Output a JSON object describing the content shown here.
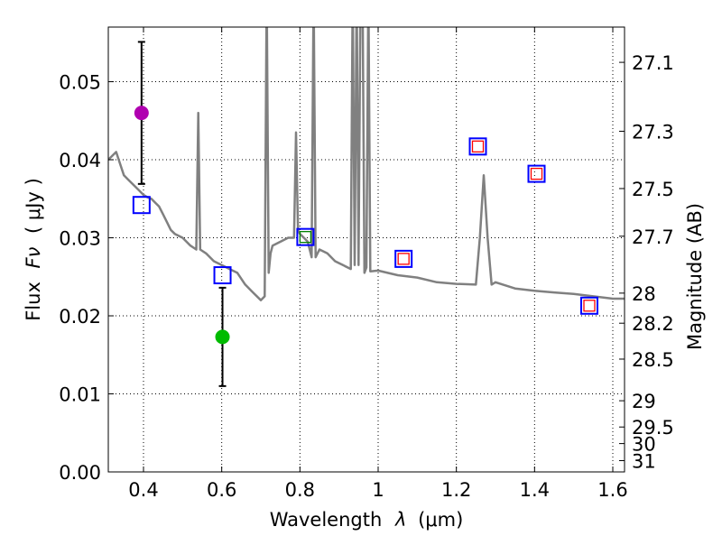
{
  "chart_data": {
    "type": "scatter",
    "xlabel_prefix": "Wavelength",
    "xlabel_symbol": "λ",
    "xlabel_unit": "(μm)",
    "ylabel_prefix": "Flux",
    "ylabel_symbol": "Fν",
    "ylabel_unit": "( μJy )",
    "y2label": "Magnitude (AB)",
    "xlim": [
      0.31,
      1.63
    ],
    "ylim": [
      0.0,
      0.057
    ],
    "grid": true,
    "x_ticks": [
      0.4,
      0.6,
      0.8,
      1.0,
      1.2,
      1.4,
      1.6
    ],
    "x_tick_labels": [
      "0.4",
      "0.6",
      "0.8",
      "1",
      "1.2",
      "1.4",
      "1.6"
    ],
    "y_ticks": [
      0.0,
      0.01,
      0.02,
      0.03,
      0.04,
      0.05
    ],
    "y_tick_labels": [
      "0.00",
      "0.01",
      "0.02",
      "0.03",
      "0.04",
      "0.05"
    ],
    "mag_ticks": [
      27.1,
      27.3,
      27.5,
      27.7,
      28,
      28.2,
      28.5,
      29,
      29.5,
      30,
      31
    ],
    "mag_tick_labels": [
      "27.1",
      "27.3",
      "27.5",
      "27.7",
      "28",
      "28.2",
      "28.5",
      "29",
      "29.5",
      "30",
      "31"
    ],
    "mag_zero_point": 23.9,
    "spectrum": {
      "name": "SED model spectrum",
      "color": "#808080",
      "x": [
        0.31,
        0.32,
        0.33,
        0.34,
        0.35,
        0.36,
        0.37,
        0.38,
        0.39,
        0.4,
        0.41,
        0.42,
        0.43,
        0.44,
        0.45,
        0.46,
        0.47,
        0.48,
        0.5,
        0.52,
        0.535,
        0.54,
        0.545,
        0.56,
        0.58,
        0.6,
        0.62,
        0.64,
        0.66,
        0.68,
        0.7,
        0.71,
        0.715,
        0.72,
        0.725,
        0.73,
        0.75,
        0.77,
        0.785,
        0.79,
        0.795,
        0.8,
        0.81,
        0.82,
        0.83,
        0.835,
        0.84,
        0.845,
        0.85,
        0.87,
        0.89,
        0.91,
        0.93,
        0.935,
        0.94,
        0.945,
        0.95,
        0.955,
        0.96,
        0.965,
        0.97,
        0.975,
        0.98,
        1.0,
        1.05,
        1.1,
        1.15,
        1.2,
        1.25,
        1.26,
        1.27,
        1.28,
        1.29,
        1.3,
        1.35,
        1.4,
        1.45,
        1.5,
        1.55,
        1.6,
        1.63
      ],
      "y": [
        0.04,
        0.0405,
        0.041,
        0.0395,
        0.038,
        0.0375,
        0.037,
        0.0365,
        0.036,
        0.0355,
        0.0352,
        0.035,
        0.0345,
        0.034,
        0.033,
        0.032,
        0.031,
        0.0305,
        0.03,
        0.029,
        0.0285,
        0.046,
        0.0285,
        0.028,
        0.027,
        0.0265,
        0.026,
        0.0255,
        0.024,
        0.023,
        0.022,
        0.0225,
        0.062,
        0.0255,
        0.028,
        0.029,
        0.0295,
        0.03,
        0.03,
        0.0435,
        0.031,
        0.0305,
        0.03,
        0.0295,
        0.0275,
        0.062,
        0.0275,
        0.028,
        0.0285,
        0.028,
        0.027,
        0.0265,
        0.026,
        0.062,
        0.0265,
        0.062,
        0.0265,
        0.062,
        0.062,
        0.0255,
        0.0262,
        0.062,
        0.0257,
        0.0258,
        0.0252,
        0.0249,
        0.0243,
        0.0241,
        0.024,
        0.03,
        0.038,
        0.03,
        0.024,
        0.0243,
        0.0235,
        0.0232,
        0.023,
        0.0228,
        0.0225,
        0.0222,
        0.0222
      ]
    },
    "model_photometry": {
      "name": "model band fluxes",
      "color": "#0000ff",
      "x": [
        0.395,
        0.602,
        0.814,
        1.065,
        1.255,
        1.405,
        1.54
      ],
      "y": [
        0.0342,
        0.0252,
        0.0301,
        0.0273,
        0.0417,
        0.0382,
        0.0213
      ]
    },
    "observed_red": {
      "name": "red markers",
      "color": "#ff0000",
      "x": [
        1.065,
        1.255,
        1.405,
        1.54
      ],
      "y": [
        0.0273,
        0.0417,
        0.0382,
        0.0213
      ]
    },
    "observed_green_box": {
      "name": "green marker",
      "color": "#008000",
      "x": [
        0.814
      ],
      "y": [
        0.0301
      ]
    },
    "detections": [
      {
        "name": "magenta point",
        "color": "#b000b0",
        "x": 0.395,
        "y": 0.046,
        "err_low": 0.0091,
        "err_high": 0.0091
      },
      {
        "name": "green point",
        "color": "#00bb00",
        "x": 0.602,
        "y": 0.0173,
        "err_low": 0.0063,
        "err_high": 0.0063
      }
    ]
  }
}
